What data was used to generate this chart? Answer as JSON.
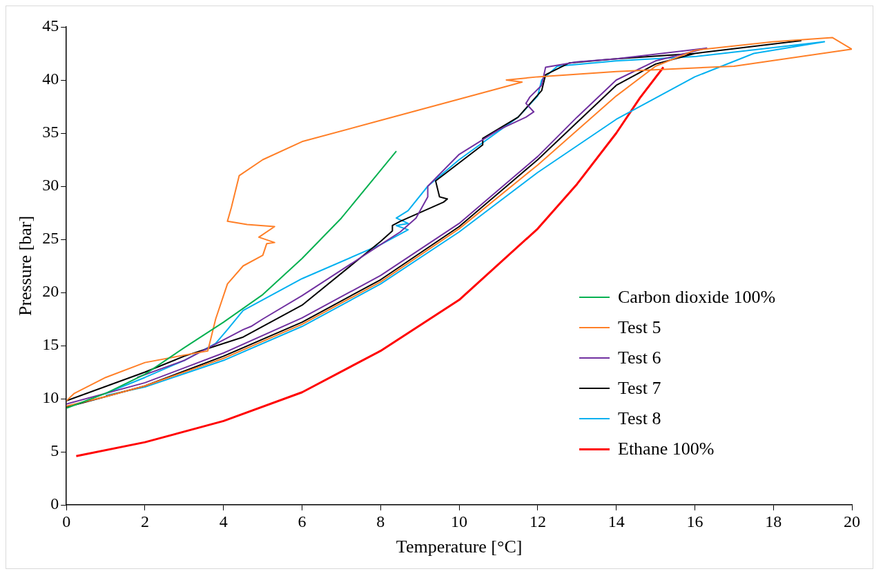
{
  "chart_data": {
    "type": "line",
    "xlabel": "Temperature [°C]",
    "ylabel": "Pressure [bar]",
    "xlim": [
      0,
      20
    ],
    "ylim": [
      0,
      45
    ],
    "xticks": [
      0,
      2,
      4,
      6,
      8,
      10,
      12,
      14,
      16,
      18,
      20
    ],
    "yticks": [
      0,
      5,
      10,
      15,
      20,
      25,
      30,
      35,
      40,
      45
    ],
    "grid": false,
    "legend": "right",
    "marker": "none",
    "line_style": "solid",
    "series": [
      {
        "name": "Carbon dioxide 100%",
        "color": "#00b050",
        "x": [
          0,
          1,
          2,
          3,
          4,
          5,
          6,
          7,
          8,
          8.4
        ],
        "values": [
          9.1,
          10.5,
          12.3,
          14.8,
          17.2,
          19.8,
          23.2,
          27,
          31.5,
          33.3
        ]
      },
      {
        "name": "Test 5",
        "color": "#ff7f27",
        "x": [
          0,
          1,
          2,
          4,
          6,
          8,
          10,
          12,
          14,
          15,
          16,
          18,
          19.5,
          20,
          17,
          14,
          12,
          11.2,
          11.6,
          11.3,
          10,
          8,
          6,
          5,
          4.4,
          4.2,
          4.1,
          4.6,
          5.3,
          4.9,
          5.3,
          5.1,
          5,
          4.5,
          4.1,
          3.8,
          3.6,
          3,
          2,
          1,
          0.2,
          0
        ],
        "values": [
          9.3,
          10.2,
          11.2,
          13.8,
          17,
          21,
          26,
          32,
          38.5,
          41.3,
          42.8,
          43.6,
          44,
          42.9,
          41.3,
          40.8,
          40.3,
          40,
          39.8,
          39.5,
          38.2,
          36.2,
          34.2,
          32.5,
          31,
          28,
          26.7,
          26.4,
          26.2,
          25.2,
          24.7,
          24.6,
          23.5,
          22.5,
          20.8,
          17.5,
          14.5,
          14.1,
          13.4,
          12,
          10.5,
          9.8
        ]
      },
      {
        "name": "Test 6",
        "color": "#7030a0",
        "x": [
          0,
          2,
          4,
          6,
          8,
          10,
          12,
          13,
          14,
          15,
          16.3,
          14,
          13,
          12.2,
          12.1,
          11.8,
          11.7,
          11.9,
          11.7,
          11,
          10,
          9.2,
          9.2,
          8.9,
          8.5,
          8,
          6,
          5,
          4.7,
          4.5,
          3,
          1.8
        ],
        "values": [
          9.5,
          11.5,
          14.3,
          17.6,
          21.6,
          26.5,
          32.8,
          36.5,
          40,
          41.8,
          43,
          42,
          41.7,
          41.2,
          39.5,
          38.4,
          37.8,
          37,
          36.5,
          35.3,
          33,
          30,
          29,
          27,
          25.7,
          24.5,
          19.7,
          17.5,
          16.8,
          16.5,
          13.6,
          12
        ]
      },
      {
        "name": "Test 7",
        "color": "#000000",
        "x": [
          0,
          1,
          2,
          4,
          6,
          8,
          10,
          12,
          13,
          14,
          15,
          16,
          18.7,
          16,
          14,
          12.8,
          12.2,
          12.1,
          11.5,
          10.6,
          10.6,
          9.4,
          9.5,
          9.7,
          9.6,
          8.5,
          8.3,
          8.3,
          8,
          6,
          4.5,
          3,
          2,
          0
        ],
        "values": [
          9.2,
          10.2,
          11.2,
          14,
          17.2,
          21.2,
          26.2,
          32.5,
          36,
          39.5,
          41.5,
          42.5,
          43.7,
          42.5,
          42,
          41.6,
          40.5,
          39,
          36.5,
          34.5,
          33.9,
          30.5,
          29,
          28.8,
          28.5,
          26.7,
          26.3,
          25.8,
          24.8,
          18.8,
          15.8,
          14,
          12.5,
          9.8
        ]
      },
      {
        "name": "Test 8",
        "color": "#00b0f0",
        "x": [
          1,
          2,
          4,
          6,
          8,
          10,
          12,
          14,
          16,
          17.5,
          19.3,
          16,
          14,
          12.5,
          12.1,
          12,
          11.5,
          10,
          9.2,
          8.7,
          8.4,
          8.7,
          8.4,
          8.7,
          8,
          6,
          4.5,
          4.1,
          3.8,
          3,
          2,
          1
        ],
        "values": [
          10.3,
          11.1,
          13.6,
          16.8,
          20.8,
          25.7,
          31.3,
          36.3,
          40.3,
          42.5,
          43.6,
          42.2,
          41.8,
          41.3,
          40,
          38.5,
          36.5,
          32.5,
          30,
          27.7,
          27,
          26.5,
          26.3,
          25.9,
          24.5,
          21.3,
          18.3,
          16.5,
          15.2,
          13.6,
          12,
          10.5
        ]
      },
      {
        "name": "Ethane 100%",
        "color": "#ff0000",
        "x": [
          0.25,
          2,
          4,
          6,
          8,
          10,
          12,
          13,
          14,
          14.6,
          15.2
        ],
        "values": [
          4.6,
          5.9,
          7.9,
          10.6,
          14.5,
          19.3,
          26,
          30.2,
          35,
          38.3,
          41.2
        ]
      }
    ]
  }
}
